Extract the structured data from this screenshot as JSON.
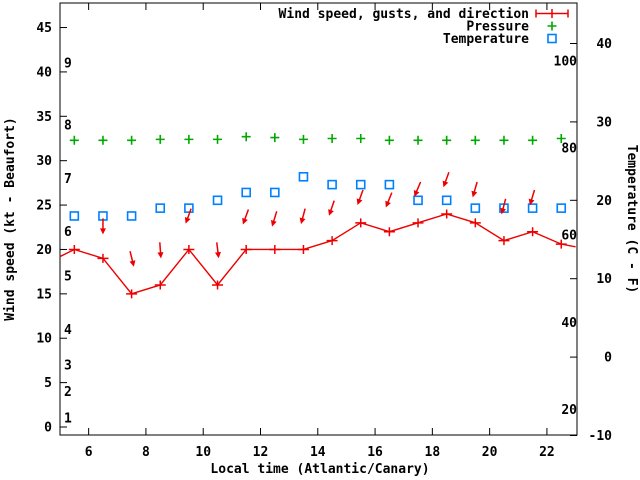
{
  "chart_data": {
    "type": "line",
    "title": "",
    "xlabel": "Local time (Atlantic/Canary)",
    "ylabel": "Wind speed (kt - Beaufort)",
    "y2label": "Temperature (C - F)",
    "axes": {
      "x": {
        "range": [
          5,
          23.05
        ],
        "ticks": [
          6,
          8,
          10,
          12,
          14,
          16,
          18,
          20,
          22
        ]
      },
      "y1": {
        "range_kt": [
          0,
          47.8
        ],
        "ticks": [
          0,
          5,
          10,
          15,
          20,
          25,
          30,
          35,
          40,
          45
        ],
        "inside_beaufort_labels": [
          {
            "text": "1",
            "kt": 1
          },
          {
            "text": "2",
            "kt": 4
          },
          {
            "text": "3",
            "kt": 7
          },
          {
            "text": "4",
            "kt": 11
          },
          {
            "text": "5",
            "kt": 17
          },
          {
            "text": "6",
            "kt": 22
          },
          {
            "text": "7",
            "kt": 28
          },
          {
            "text": "8",
            "kt": 34
          },
          {
            "text": "9",
            "kt": 41
          }
        ]
      },
      "y2": {
        "range_c": [
          -10,
          45
        ],
        "ticks": [
          -10,
          0,
          10,
          20,
          30,
          40
        ],
        "inside_fahrenheit_labels": [
          {
            "text": "20",
            "f": 20
          },
          {
            "text": "40",
            "f": 40
          },
          {
            "text": "60",
            "f": 60
          },
          {
            "text": "80",
            "f": 80
          },
          {
            "text": "100",
            "f": 100
          }
        ]
      }
    },
    "x": [
      5.5,
      6.5,
      7.5,
      8.5,
      9.5,
      10.5,
      11.5,
      12.5,
      13.5,
      14.5,
      15.5,
      16.5,
      17.5,
      18.5,
      19.5,
      20.5,
      21.5,
      22.5
    ],
    "series": [
      {
        "name": "Wind speed, gusts, and direction",
        "color": "#ee0000",
        "style": "errorbar-line-with-direction-arrows",
        "wind_kt": [
          20,
          19,
          15,
          16,
          20,
          16,
          20,
          20,
          20,
          21,
          23,
          22,
          23,
          24,
          23,
          21,
          22,
          20.6
        ],
        "gust_kt": [
          null,
          23.5,
          19.8,
          20.8,
          24.6,
          20.8,
          24.5,
          24.3,
          24.6,
          25.5,
          26.7,
          26.4,
          27.6,
          28.7,
          27.6,
          25.7,
          26.7,
          null
        ],
        "dir_tilt_deg": [
          null,
          0,
          -14,
          -4,
          20,
          -7,
          20,
          17,
          15,
          19,
          20,
          22,
          23,
          20,
          16,
          15,
          17,
          null
        ],
        "edge_start": {
          "t": 5.0,
          "kt": 19.2
        },
        "edge_end": {
          "t": 23.0,
          "kt": 20.3
        }
      },
      {
        "name": "Pressure",
        "color": "#00a800",
        "style": "plus-points",
        "axis": "hidden",
        "level_kt": [
          32.3,
          32.3,
          32.3,
          32.4,
          32.4,
          32.4,
          32.7,
          32.6,
          32.4,
          32.5,
          32.5,
          32.3,
          32.3,
          32.3,
          32.3,
          32.3,
          32.3,
          32.5
        ]
      },
      {
        "name": "Temperature",
        "color": "#0080ff",
        "style": "open-square-points",
        "temp_c": [
          18,
          18,
          18,
          19,
          19,
          20,
          21,
          21,
          23,
          22,
          22,
          22,
          20,
          20,
          19,
          19,
          19,
          19
        ]
      }
    ],
    "legend": [
      {
        "label": "Wind speed, gusts, and direction",
        "color": "#ee0000",
        "sample": "errorbar"
      },
      {
        "label": "Pressure",
        "color": "#00a800",
        "sample": "plus"
      },
      {
        "label": "Temperature",
        "color": "#0080ff",
        "sample": "square"
      }
    ],
    "layout": {
      "grid": false,
      "legend_position": "inside-top-right",
      "background": "#ffffff",
      "border_color": "#000000"
    }
  }
}
